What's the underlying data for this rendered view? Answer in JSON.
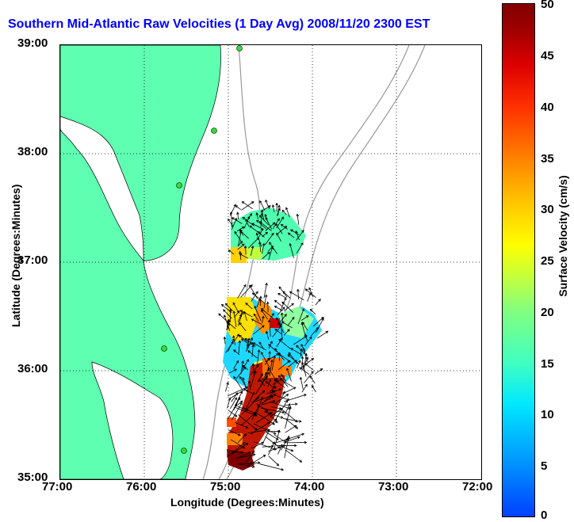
{
  "title": "Southern Mid-Atlantic Raw Velocities (1 Day Avg) 2008/11/20 2300 EST",
  "y_axis": {
    "label": "Latitude (Degrees:Minutes)",
    "ticks": [
      "39:00",
      "38:00",
      "37:00",
      "36:00",
      "35:00"
    ]
  },
  "x_axis": {
    "label": "Longitude (Degrees:Minutes)",
    "ticks": [
      "77:00",
      "76:00",
      "75:00",
      "74:00",
      "73:00",
      "72:00"
    ]
  },
  "colorbar": {
    "label": "Surface Velocity (cm/s)",
    "ticks": [
      "50",
      "45",
      "40",
      "35",
      "30",
      "25",
      "20",
      "15",
      "10",
      "5",
      "0"
    ],
    "range": [
      0,
      50
    ]
  },
  "colors": {
    "land": "#5effb0",
    "title": "#0000ff",
    "contour": "#999999",
    "station": "#33dd33"
  },
  "regions": [
    {
      "name": "north patch",
      "speed_cm_s": 14
    },
    {
      "name": "central patch",
      "speed_cm_s": 12
    },
    {
      "name": "southern jet",
      "speed_cm_s": 45
    }
  ]
}
